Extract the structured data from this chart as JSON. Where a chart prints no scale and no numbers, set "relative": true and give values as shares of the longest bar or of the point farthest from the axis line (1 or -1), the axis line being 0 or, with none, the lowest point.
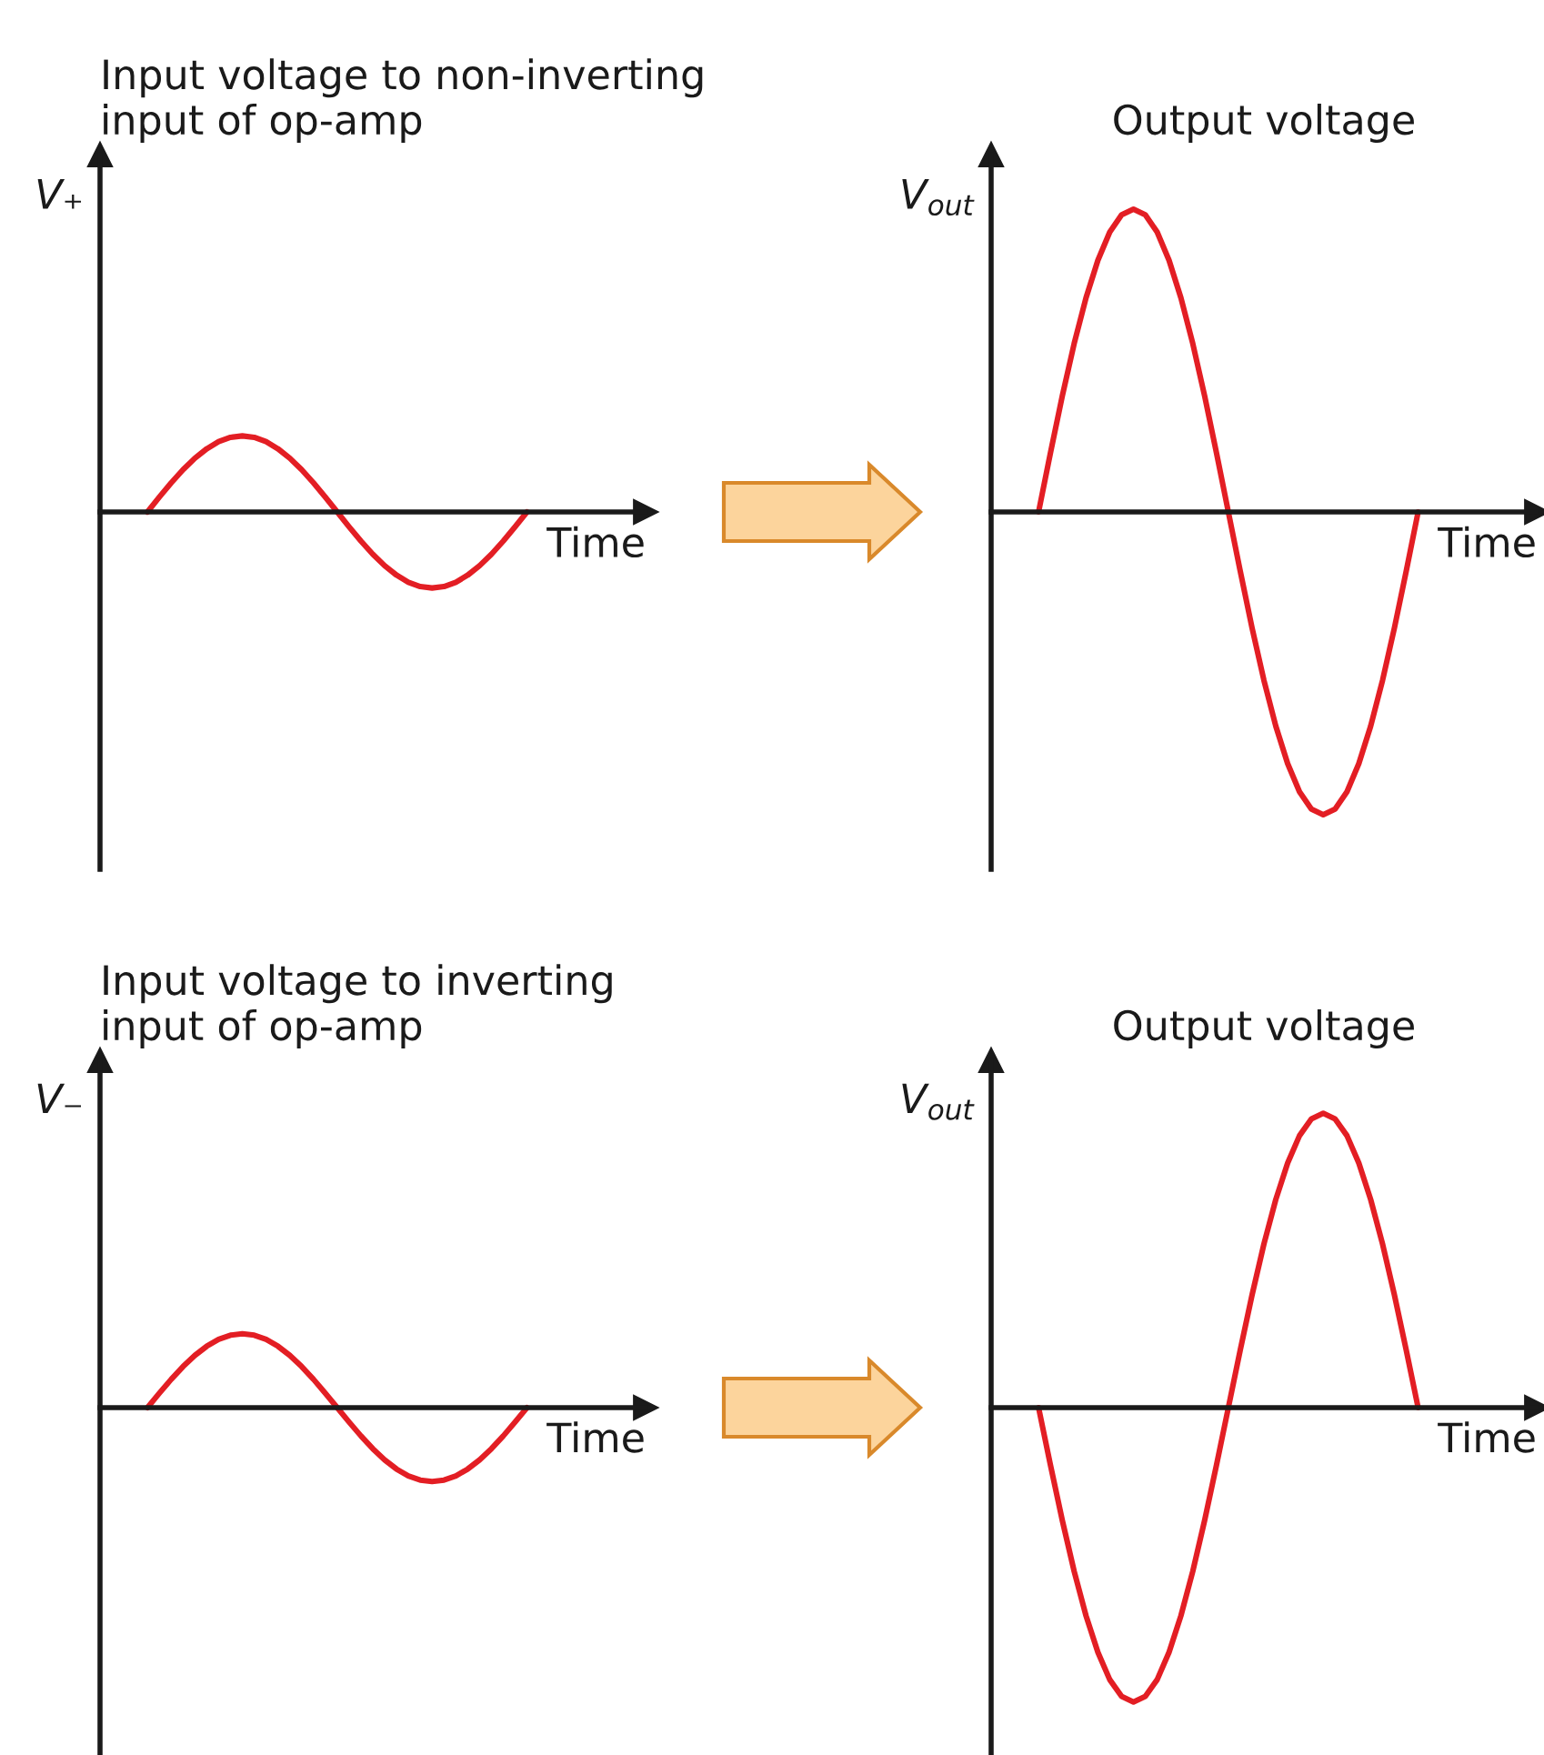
{
  "chart_data": [
    {
      "type": "line",
      "title": "Input voltage to non-inverting\ninput of op-amp",
      "xlabel": "Time",
      "ylabel": "V₊",
      "relative": true,
      "color": "#e31e24",
      "categories": [
        null,
        null,
        null,
        null,
        null,
        null,
        null,
        null,
        null,
        null,
        null,
        null,
        null,
        null,
        null,
        null,
        null,
        null,
        null,
        null,
        null,
        null,
        null,
        null,
        null,
        null,
        null,
        null,
        null,
        null,
        null,
        null,
        null,
        null,
        null,
        null,
        null,
        null,
        null,
        null,
        null,
        null,
        null,
        null,
        null,
        null,
        null
      ],
      "values": [
        null,
        null,
        null,
        null,
        0,
        0.195,
        0.383,
        0.556,
        0.707,
        0.831,
        0.924,
        0.981,
        1,
        0.981,
        0.924,
        0.831,
        0.707,
        0.556,
        0.383,
        0.195,
        0,
        -0.195,
        -0.383,
        -0.556,
        -0.707,
        -0.831,
        -0.924,
        -0.981,
        -1,
        -0.981,
        -0.924,
        -0.831,
        -0.707,
        -0.556,
        -0.383,
        -0.195,
        0,
        null,
        null,
        null,
        null,
        null,
        null,
        null,
        null,
        null,
        null
      ]
    },
    {
      "type": "line",
      "title": "Output voltage",
      "xlabel": "Time",
      "ylabel": "V$_{out}$",
      "relative": true,
      "color": "#e31e24",
      "categories": [
        null,
        null,
        null,
        null,
        null,
        null,
        null,
        null,
        null,
        null,
        null,
        null,
        null,
        null,
        null,
        null,
        null,
        null,
        null,
        null,
        null,
        null,
        null,
        null,
        null,
        null,
        null,
        null,
        null,
        null,
        null,
        null,
        null,
        null,
        null,
        null,
        null,
        null,
        null,
        null,
        null,
        null,
        null,
        null,
        null,
        null,
        null
      ],
      "values": [
        null,
        null,
        null,
        null,
        0,
        0.195,
        0.383,
        0.556,
        0.707,
        0.831,
        0.924,
        0.981,
        1,
        0.981,
        0.924,
        0.831,
        0.707,
        0.556,
        0.383,
        0.195,
        0,
        -0.195,
        -0.383,
        -0.556,
        -0.707,
        -0.831,
        -0.924,
        -0.981,
        -1,
        -0.981,
        -0.924,
        -0.831,
        -0.707,
        -0.556,
        -0.383,
        -0.195,
        0,
        null,
        null,
        null,
        null,
        null,
        null,
        null,
        null,
        null,
        null
      ]
    },
    {
      "type": "line",
      "title": "Input voltage to inverting\ninput of op-amp",
      "xlabel": "Time",
      "ylabel": "V₋",
      "relative": true,
      "color": "#e31e24",
      "categories": [
        null,
        null,
        null,
        null,
        null,
        null,
        null,
        null,
        null,
        null,
        null,
        null,
        null,
        null,
        null,
        null,
        null,
        null,
        null,
        null,
        null,
        null,
        null,
        null,
        null,
        null,
        null,
        null,
        null,
        null,
        null,
        null,
        null,
        null,
        null,
        null,
        null,
        null,
        null,
        null,
        null,
        null,
        null,
        null,
        null,
        null,
        null
      ],
      "values": [
        null,
        null,
        null,
        null,
        0,
        0.195,
        0.383,
        0.556,
        0.707,
        0.831,
        0.924,
        0.981,
        1,
        0.981,
        0.924,
        0.831,
        0.707,
        0.556,
        0.383,
        0.195,
        0,
        -0.195,
        -0.383,
        -0.556,
        -0.707,
        -0.831,
        -0.924,
        -0.981,
        -1,
        -0.981,
        -0.924,
        -0.831,
        -0.707,
        -0.556,
        -0.383,
        -0.195,
        0,
        null,
        null,
        null,
        null,
        null,
        null,
        null,
        null,
        null,
        null
      ]
    },
    {
      "type": "line",
      "title": "Output voltage",
      "xlabel": "Time",
      "ylabel": "V$_{out}$",
      "relative": true,
      "color": "#e31e24",
      "categories": [
        null,
        null,
        null,
        null,
        null,
        null,
        null,
        null,
        null,
        null,
        null,
        null,
        null,
        null,
        null,
        null,
        null,
        null,
        null,
        null,
        null,
        null,
        null,
        null,
        null,
        null,
        null,
        null,
        null,
        null,
        null,
        null,
        null,
        null,
        null,
        null,
        null,
        null,
        null,
        null,
        null,
        null,
        null,
        null,
        null,
        null,
        null
      ],
      "values": [
        null,
        null,
        null,
        null,
        0,
        -0.195,
        -0.383,
        -0.556,
        -0.707,
        -0.831,
        -0.924,
        -0.981,
        -1,
        -0.981,
        -0.924,
        -0.831,
        -0.707,
        -0.556,
        -0.383,
        -0.195,
        0,
        0.195,
        0.383,
        0.556,
        0.707,
        0.831,
        0.924,
        0.981,
        1,
        0.981,
        0.924,
        0.831,
        0.707,
        0.556,
        0.383,
        0.195,
        0,
        null,
        null,
        null,
        null,
        null,
        null,
        null,
        null,
        null,
        null
      ]
    }
  ]
}
